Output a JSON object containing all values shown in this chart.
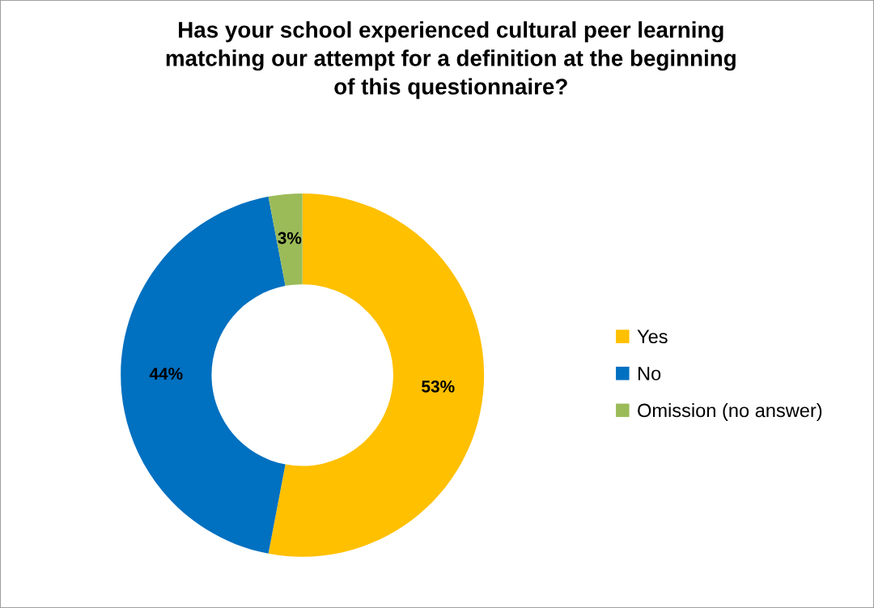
{
  "chart_data": {
    "type": "donut",
    "title": "Has your school experienced cultural peer learning\nmatching our attempt for a definition at the beginning\nof this questionnaire?",
    "categories": [
      "Yes",
      "No",
      "Omission (no answer)"
    ],
    "values": [
      53,
      44,
      3
    ],
    "colors": [
      "#ffc000",
      "#0070c0",
      "#9bbb59"
    ],
    "value_labels": [
      "53%",
      "44%",
      "3%"
    ],
    "legend": "right"
  }
}
